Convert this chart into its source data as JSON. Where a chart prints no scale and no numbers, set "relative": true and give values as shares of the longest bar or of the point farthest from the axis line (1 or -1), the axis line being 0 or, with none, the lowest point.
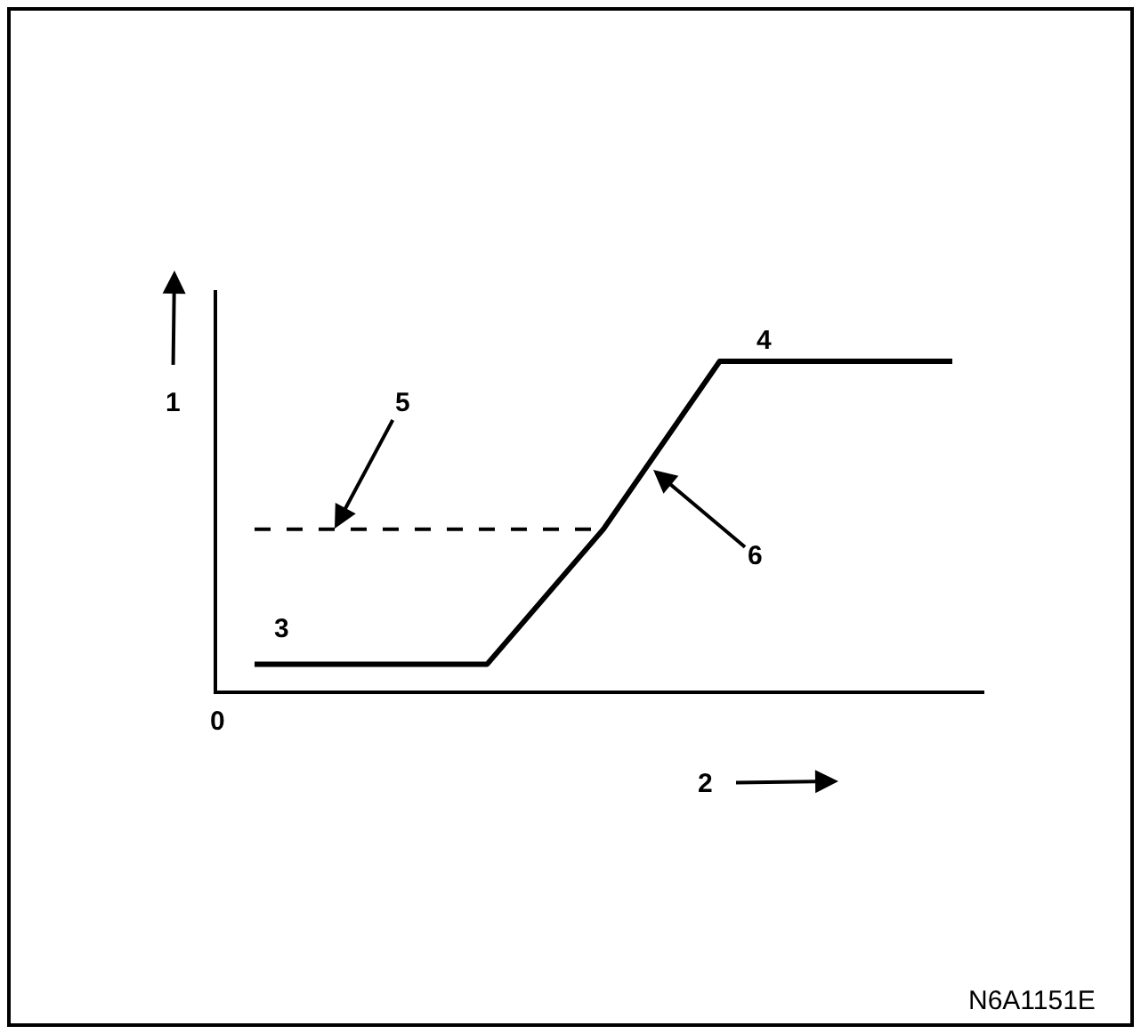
{
  "chart_data": {
    "type": "line",
    "relative": true,
    "xlabel": "2",
    "ylabel": "1",
    "categories": [
      null,
      null,
      null,
      null,
      null,
      null,
      null
    ],
    "series": [
      {
        "color": "#000000",
        "line_style": "solid",
        "values": [
          0.08,
          0.08,
          0.08,
          0.49,
          1,
          1,
          1
        ]
      },
      {
        "color": "#000000",
        "line_style": "dashed",
        "values": [
          0.49,
          0.49,
          0.49,
          0.49,
          null,
          null,
          null
        ]
      }
    ],
    "annotations": [
      "0",
      "3",
      "4",
      "5",
      "6",
      "N6A1151E"
    ]
  }
}
